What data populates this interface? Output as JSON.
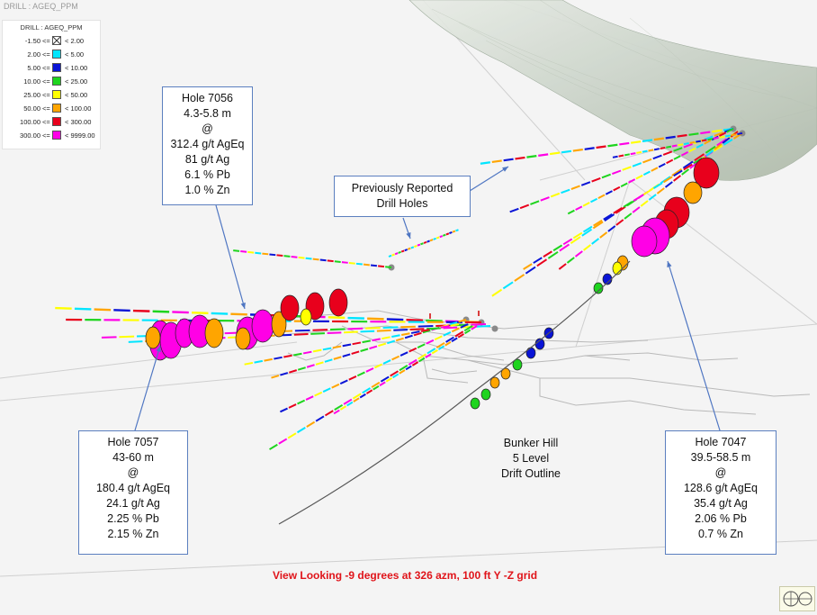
{
  "window": {
    "title": "DRILL : AGEQ_PPM"
  },
  "legend": {
    "title": "DRILL : AGEQ_PPM",
    "rows": [
      {
        "low": "-1.50",
        "op": "<=",
        "high": "< 2.00",
        "color": "#ffffff",
        "icon": "crossed-box-icon"
      },
      {
        "low": "2.00",
        "op": "<=",
        "high": "< 5.00",
        "color": "#00e5ff"
      },
      {
        "low": "5.00",
        "op": "<=",
        "high": "< 10.00",
        "color": "#0a14d6"
      },
      {
        "low": "10.00",
        "op": "<=",
        "high": "< 25.00",
        "color": "#1ed41e"
      },
      {
        "low": "25.00",
        "op": "<=",
        "high": "< 50.00",
        "color": "#ffff00"
      },
      {
        "low": "50.00",
        "op": "<=",
        "high": "< 100.00",
        "color": "#ffa500"
      },
      {
        "low": "100.00",
        "op": "<=",
        "high": "< 300.00",
        "color": "#e8001c"
      },
      {
        "low": "300.00",
        "op": "<=",
        "high": "< 9999.00",
        "color": "#ff00e6"
      }
    ]
  },
  "callouts": {
    "hole_7056": [
      "Hole 7056",
      "4.3-5.8 m",
      "@",
      "312.4 g/t AgEq",
      "81 g/t Ag",
      "6.1 % Pb",
      "1.0 % Zn"
    ],
    "previously_reported": [
      "Previously Reported",
      "Drill Holes"
    ],
    "hole_7057": [
      "Hole 7057",
      "43-60 m",
      "@",
      "180.4 g/t AgEq",
      "24.1 g/t Ag",
      "2.25 % Pb",
      "2.15 % Zn"
    ],
    "hole_7047": [
      "Hole 7047",
      "39.5-58.5 m",
      "@",
      "128.6 g/t AgEq",
      "35.4 g/t Ag",
      "2.06 % Pb",
      "0.7 % Zn"
    ]
  },
  "drift_label": [
    "Bunker Hill",
    "5 Level",
    "Drift Outline"
  ],
  "caption": "View Looking  -9 degrees at 326 azm, 100 ft Y -Z grid",
  "colors": {
    "callout_border": "#5b7fbf",
    "arrow": "#4f76c2",
    "caption": "#e0141a",
    "background": "#f4f4f4",
    "surface": "#cfd6cc"
  }
}
